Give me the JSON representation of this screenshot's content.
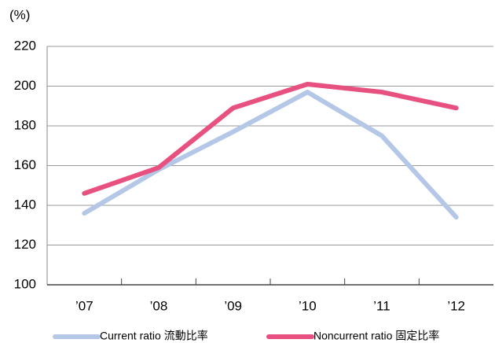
{
  "chart_data": {
    "type": "line",
    "ylabel": "(%)",
    "categories": [
      "’07",
      "’08",
      "’09",
      "’10",
      "’11",
      "’12"
    ],
    "series": [
      {
        "name": "Current ratio 流動比率",
        "color": "#b4c7e7",
        "values": [
          136,
          158,
          177,
          197,
          175,
          134
        ]
      },
      {
        "name": "Noncurrent ratio 固定比率",
        "color": "#e8507f",
        "values": [
          146,
          159,
          189,
          201,
          197,
          189
        ]
      }
    ],
    "ylim": [
      100,
      220
    ],
    "yticks": [
      100,
      120,
      140,
      160,
      180,
      200,
      220
    ],
    "grid": true
  }
}
